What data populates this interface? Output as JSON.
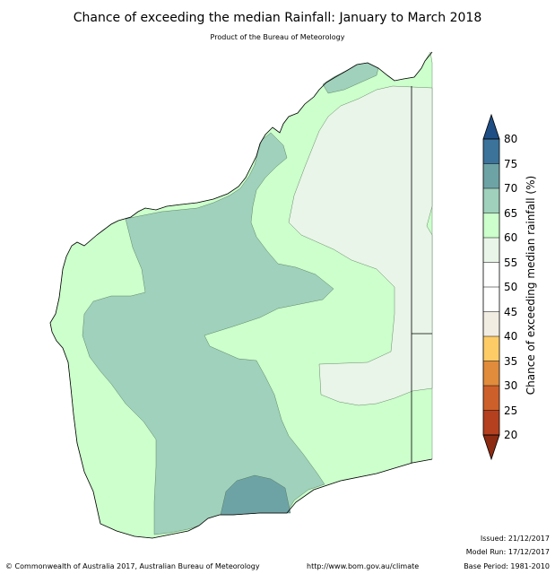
{
  "title": "Chance of exceeding the median Rainfall: January to March 2018",
  "subtitle": "Product of the Bureau of Meteorology",
  "colorbar": {
    "label": "Chance of exceeding median rainfall (%)",
    "ticks": [
      "80",
      "75",
      "70",
      "65",
      "60",
      "55",
      "50",
      "45",
      "40",
      "35",
      "30",
      "25",
      "20"
    ],
    "colors": {
      "above_80": "#1f4e85",
      "75_80": "#3b739b",
      "70_75": "#6ea3a6",
      "65_70": "#9fd1bc",
      "60_65": "#ccffcc",
      "55_60": "#e8f5e8",
      "50_55": "#ffffff",
      "45_50": "#ffffff",
      "40_45": "#f2ede3",
      "35_40": "#fdcc66",
      "30_35": "#e08c3c",
      "25_30": "#cd5f2a",
      "20_25": "#b44020",
      "below_20": "#8c2a12"
    }
  },
  "info": {
    "issued": "Issued: 21/12/2017",
    "model_run": "Model Run: 17/12/2017",
    "base_period": "Base Period: 1981-2010"
  },
  "footer": {
    "copyright": "© Commonwealth of Australia 2017, Australian Bureau of Meteorology",
    "url": "http://www.bom.gov.au/climate"
  }
}
